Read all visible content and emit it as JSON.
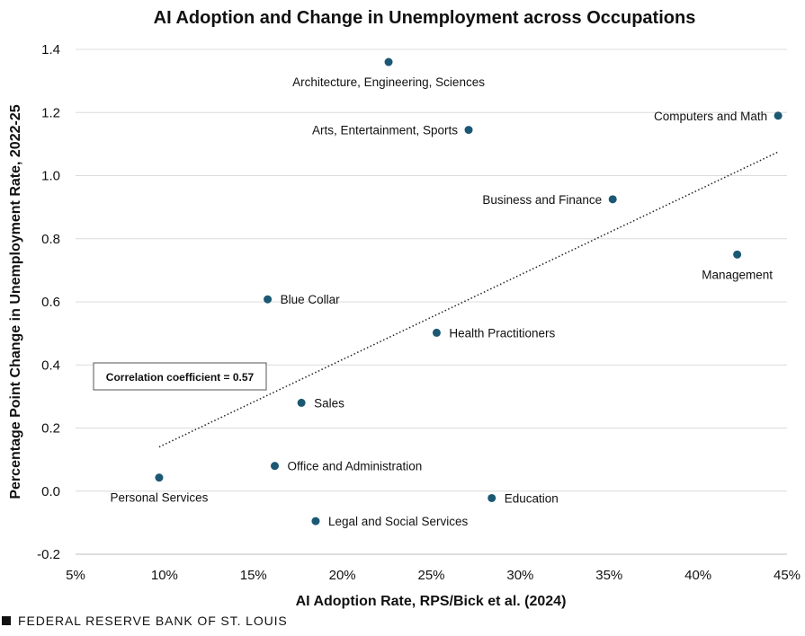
{
  "chart_data": {
    "type": "scatter",
    "title": "AI Adoption and Change in Unemployment across Occupations",
    "xlabel": "AI Adoption Rate, RPS/Bick et al. (2024)",
    "ylabel": "Percentage Point Change in Unemployment Rate, 2022-25",
    "xlim": [
      0.05,
      0.45
    ],
    "ylim": [
      -0.2,
      1.4
    ],
    "xticks": [
      0.05,
      0.1,
      0.15,
      0.2,
      0.25,
      0.3,
      0.35,
      0.4,
      0.45
    ],
    "xtick_labels": [
      "5%",
      "10%",
      "15%",
      "20%",
      "25%",
      "30%",
      "35%",
      "40%",
      "45%"
    ],
    "yticks": [
      -0.2,
      0.0,
      0.2,
      0.4,
      0.6,
      0.8,
      1.0,
      1.2,
      1.4
    ],
    "ytick_labels": [
      "-0.2",
      "0.0",
      "0.2",
      "0.4",
      "0.6",
      "0.8",
      "1.0",
      "1.2",
      "1.4"
    ],
    "grid": "horizontal",
    "point_color": "#1b5873",
    "points": [
      {
        "label": "Architecture, Engineering, Sciences",
        "x": 0.226,
        "y": 1.36,
        "label_pos": "below"
      },
      {
        "label": "Computers and Math",
        "x": 0.445,
        "y": 1.19,
        "label_pos": "left"
      },
      {
        "label": "Arts, Entertainment, Sports",
        "x": 0.271,
        "y": 1.145,
        "label_pos": "left"
      },
      {
        "label": "Business and Finance",
        "x": 0.352,
        "y": 0.925,
        "label_pos": "left"
      },
      {
        "label": "Management",
        "x": 0.422,
        "y": 0.75,
        "label_pos": "below"
      },
      {
        "label": "Blue Collar",
        "x": 0.158,
        "y": 0.608,
        "label_pos": "right"
      },
      {
        "label": "Health Practitioners",
        "x": 0.253,
        "y": 0.502,
        "label_pos": "right"
      },
      {
        "label": "Sales",
        "x": 0.177,
        "y": 0.28,
        "label_pos": "right"
      },
      {
        "label": "Office and Administration",
        "x": 0.162,
        "y": 0.08,
        "label_pos": "right"
      },
      {
        "label": "Personal Services",
        "x": 0.097,
        "y": 0.043,
        "label_pos": "below"
      },
      {
        "label": "Education",
        "x": 0.284,
        "y": -0.022,
        "label_pos": "right"
      },
      {
        "label": "Legal and Social Services",
        "x": 0.185,
        "y": -0.095,
        "label_pos": "right"
      }
    ],
    "trendline": {
      "style": "dotted",
      "x_start": 0.097,
      "y_start": 0.14,
      "x_end": 0.445,
      "y_end": 1.075
    },
    "annotation": "Correlation coefficient = 0.57"
  },
  "footer": {
    "source": "FEDERAL RESERVE BANK OF ST. LOUIS"
  }
}
